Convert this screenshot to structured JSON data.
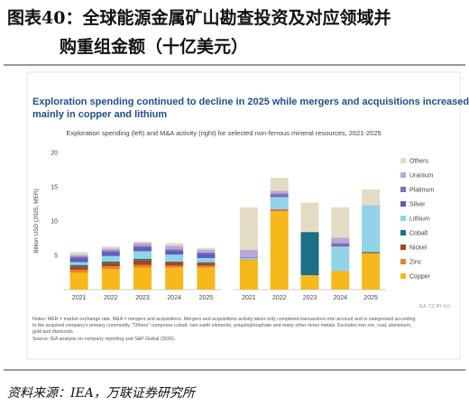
{
  "header": {
    "title_lines": [
      "图表40：全球能源金属矿山勘查投资及对应领域并",
      "购重组金额（十亿美元）"
    ]
  },
  "figure": {
    "title_lines": [
      "Exploration spending continued to decline in 2025 while mergers and acquisitions increased,",
      "mainly in copper and lithium"
    ],
    "subtitle": "Exploration spending (left) and M&A activity (right) for selected non-ferrous mineral resources, 2021-2025",
    "y_label": "Billion USD (2025, MER)",
    "credit": "IEA. CC BY 4.0.",
    "notes": [
      "Notes: MER = market exchange rate. M&A = mergers and acquisitions. Mergers and acquisitions activity takes only completed transactions into account and is categorised according",
      "to the acquired company's primary commodity. \"Others\" comprises cobalt, rare earth elements, potash/phosphate and many other minor metals. Excludes iron ore, coal, aluminium,",
      "gold and diamonds.",
      "Source: IEA analysis on company reporting and S&P Global (2026)."
    ]
  },
  "chart_data": [
    {
      "type": "stacked_bar",
      "categories": [
        "2021",
        "2022",
        "2023",
        "2024",
        "2025"
      ],
      "ylim": [
        0,
        20
      ],
      "yticks": [
        5,
        10,
        15,
        20
      ],
      "series": [
        {
          "name": "Copper",
          "color": "#f6b81a",
          "values": [
            2.5,
            3.0,
            3.2,
            3.2,
            3.2
          ]
        },
        {
          "name": "Zinc",
          "color": "#e8812a",
          "values": [
            0.4,
            0.4,
            0.4,
            0.3,
            0.3
          ]
        },
        {
          "name": "Nickel",
          "color": "#a4471f",
          "values": [
            0.5,
            0.5,
            0.7,
            0.5,
            0.4
          ]
        },
        {
          "name": "Cobalt",
          "color": "#1b6f86",
          "values": [
            0.2,
            0.2,
            0.2,
            0.1,
            0.1
          ]
        },
        {
          "name": "Lithium",
          "color": "#92d3e8",
          "values": [
            0.4,
            0.8,
            1.1,
            1.0,
            0.6
          ]
        },
        {
          "name": "Silver",
          "color": "#5a62b8",
          "values": [
            0.6,
            0.6,
            0.6,
            0.6,
            0.6
          ]
        },
        {
          "name": "Platinum",
          "color": "#8a6bbd",
          "values": [
            0.2,
            0.2,
            0.2,
            0.2,
            0.2
          ]
        },
        {
          "name": "Uranium",
          "color": "#b9a8d9",
          "values": [
            0.3,
            0.3,
            0.4,
            0.5,
            0.4
          ]
        },
        {
          "name": "Others",
          "color": "#e3dcc4",
          "values": [
            0.4,
            0.3,
            0.2,
            0.4,
            0.3
          ]
        }
      ]
    },
    {
      "type": "stacked_bar",
      "categories": [
        "2021",
        "2022",
        "2023",
        "2024",
        "2025"
      ],
      "ylim": [
        0,
        20
      ],
      "series": [
        {
          "values": [
            4.3,
            11.4,
            2.1,
            2.7,
            5.3
          ]
        },
        {
          "values": [
            0.1,
            0.2,
            0,
            0,
            0
          ]
        },
        {
          "values": [
            0,
            0.1,
            0,
            0,
            0.1
          ]
        },
        {
          "values": [
            0,
            0,
            6.3,
            0,
            0.1
          ]
        },
        {
          "values": [
            0.2,
            1.8,
            0,
            3.6,
            6.8
          ]
        },
        {
          "values": [
            0.1,
            0.2,
            0,
            0.2,
            0
          ]
        },
        {
          "values": [
            0,
            0.3,
            0,
            0.3,
            0
          ]
        },
        {
          "values": [
            1.1,
            0.4,
            0,
            0.8,
            0
          ]
        },
        {
          "values": [
            6.2,
            1.9,
            4.3,
            4.4,
            2.3
          ]
        }
      ]
    }
  ],
  "source": "资料来源：IEA，万联证券研究所"
}
